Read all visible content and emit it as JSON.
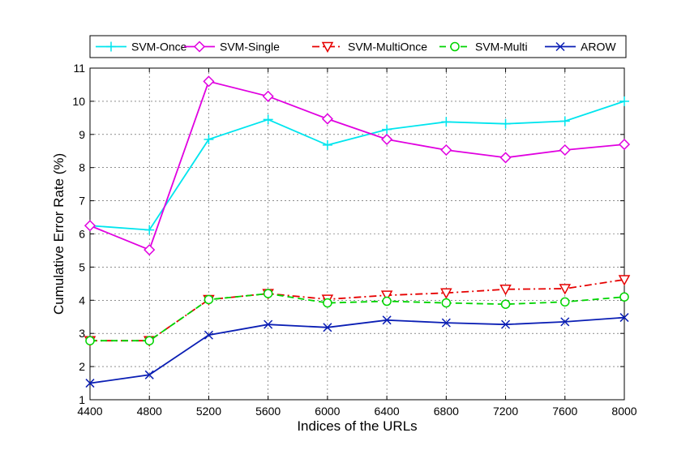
{
  "chart_data": {
    "type": "line",
    "xlabel": "Indices of the URLs",
    "ylabel": "Cumulative Error Rate (%)",
    "xlim": [
      4400,
      8000
    ],
    "ylim": [
      1,
      11
    ],
    "grid": true,
    "legend_position": "top",
    "x": [
      4400,
      4800,
      5200,
      5600,
      6000,
      6400,
      6800,
      7200,
      7600,
      8000
    ],
    "x_ticks": [
      "4400",
      "4800",
      "5200",
      "5600",
      "6000",
      "6400",
      "6800",
      "7200",
      "7600",
      "8000"
    ],
    "y_ticks": [
      "1",
      "2",
      "3",
      "4",
      "5",
      "6",
      "7",
      "8",
      "9",
      "10",
      "11"
    ],
    "series": [
      {
        "name": "SVM-Once",
        "color": "#00e5ee",
        "marker": "plus",
        "line_style": "solid",
        "values": [
          6.25,
          6.12,
          8.85,
          9.45,
          8.68,
          9.15,
          9.38,
          9.32,
          9.4,
          10.0
        ]
      },
      {
        "name": "SVM-Single",
        "color": "#e000e0",
        "marker": "diamond",
        "line_style": "solid",
        "values": [
          6.25,
          5.52,
          10.6,
          10.15,
          9.47,
          8.85,
          8.53,
          8.3,
          8.53,
          8.7
        ]
      },
      {
        "name": "SVM-MultiOnce",
        "color": "#e60000",
        "marker": "triangle-down",
        "line_style": "dashdot",
        "values": [
          2.78,
          2.78,
          4.02,
          4.2,
          4.03,
          4.15,
          4.22,
          4.33,
          4.35,
          4.62
        ]
      },
      {
        "name": "SVM-Multi",
        "color": "#00d400",
        "marker": "circle",
        "line_style": "dashed",
        "values": [
          2.78,
          2.78,
          4.02,
          4.2,
          3.92,
          3.97,
          3.92,
          3.88,
          3.95,
          4.1
        ]
      },
      {
        "name": "AROW",
        "color": "#0a1eb4",
        "marker": "x",
        "line_style": "solid",
        "values": [
          1.5,
          1.75,
          2.95,
          3.27,
          3.18,
          3.4,
          3.32,
          3.27,
          3.35,
          3.48
        ]
      }
    ]
  }
}
